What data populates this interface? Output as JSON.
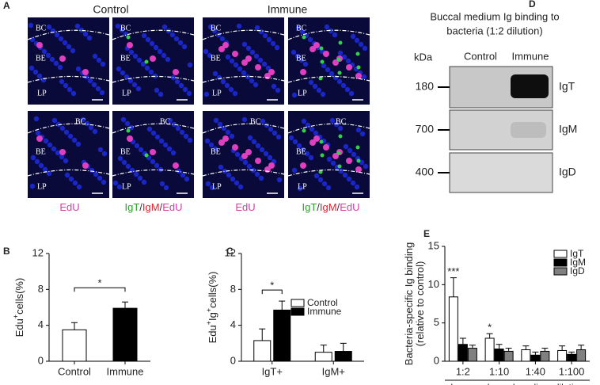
{
  "panel_letters": [
    "A",
    "B",
    "C",
    "D",
    "E"
  ],
  "panel_a": {
    "groups": [
      "Control",
      "Immune"
    ],
    "stain_labels": [
      [
        {
          "text": "EdU",
          "color": "#d63ba8"
        }
      ],
      [
        {
          "text": "IgT",
          "color": "#2ca02c"
        },
        {
          "text": "/",
          "color": "#333333"
        },
        {
          "text": "IgM",
          "color": "#e0202a"
        },
        {
          "text": "/",
          "color": "#333333"
        },
        {
          "text": "EdU",
          "color": "#d63ba8"
        }
      ],
      [
        {
          "text": "EdU",
          "color": "#d63ba8"
        }
      ],
      [
        {
          "text": "IgT",
          "color": "#2ca02c"
        },
        {
          "text": "/",
          "color": "#333333"
        },
        {
          "text": "IgM",
          "color": "#e0202a"
        },
        {
          "text": "/",
          "color": "#333333"
        },
        {
          "text": "EdU",
          "color": "#d63ba8"
        }
      ]
    ],
    "tissue_labels": [
      "BC",
      "BE",
      "LP"
    ]
  },
  "panel_d": {
    "title": [
      "Buccal medium Ig binding to",
      "bacteria  (1:2 dilution)"
    ],
    "unit": "kDa",
    "lanes": [
      "Control",
      "Immune"
    ],
    "markers": [
      "180",
      "700",
      "400"
    ],
    "blots": [
      "IgT",
      "IgM",
      "IgD"
    ]
  },
  "chart_data": [
    {
      "type": "bar",
      "ylabel": [
        {
          "text": "Edu"
        },
        {
          "text": "+",
          "sup": true
        },
        {
          "text": "cells(%)"
        }
      ],
      "categories": [
        "Control",
        "Immune"
      ],
      "values": [
        3.5,
        5.9
      ],
      "errors": [
        0.8,
        0.7
      ],
      "colors": [
        "#ffffff",
        "#000000"
      ],
      "ylim": [
        0,
        12
      ],
      "yticks": [
        0,
        4,
        8,
        12
      ],
      "annotations": [
        {
          "text": "*",
          "between": [
            0,
            1
          ]
        }
      ]
    },
    {
      "type": "grouped_bar",
      "ylabel": [
        {
          "text": "Edu"
        },
        {
          "text": "+",
          "sup": true
        },
        {
          "text": "Ig"
        },
        {
          "text": "+",
          "sup": true
        },
        {
          "text": "cells(%)"
        }
      ],
      "categories": [
        "IgT+",
        "IgM+"
      ],
      "series": [
        {
          "name": "Control",
          "color": "#ffffff",
          "values": [
            2.3,
            1.0
          ],
          "errors": [
            1.3,
            0.8
          ]
        },
        {
          "name": "Immune",
          "color": "#000000",
          "values": [
            5.7,
            1.1
          ],
          "errors": [
            1.0,
            0.9
          ]
        }
      ],
      "ylim": [
        0,
        12
      ],
      "yticks": [
        0,
        4,
        8,
        12
      ],
      "legend": "upper right",
      "annotations": [
        {
          "text": "*",
          "category": 0
        }
      ]
    },
    {
      "type": "grouped_bar",
      "ylabel": [
        {
          "text": "Bacteria-specific Ig binding"
        },
        {
          "text": "(relative to control)",
          "newline": true
        }
      ],
      "xlabel": "Immune buccal medium dilution",
      "categories": [
        "1:2",
        "1:10",
        "1:40",
        "1:100"
      ],
      "series": [
        {
          "name": "IgT",
          "color": "#ffffff",
          "values": [
            8.4,
            3.0,
            1.5,
            1.4
          ],
          "errors": [
            2.5,
            0.6,
            0.5,
            0.6
          ]
        },
        {
          "name": "IgM",
          "color": "#000000",
          "values": [
            2.2,
            1.6,
            0.8,
            0.9
          ],
          "errors": [
            0.8,
            0.6,
            0.4,
            0.3
          ]
        },
        {
          "name": "IgD",
          "color": "#808080",
          "values": [
            1.7,
            1.3,
            1.3,
            1.5
          ],
          "errors": [
            0.4,
            0.4,
            0.4,
            0.6
          ]
        }
      ],
      "ylim": [
        0,
        15
      ],
      "yticks": [
        0,
        5,
        10,
        15
      ],
      "legend": "upper right",
      "annotations": [
        {
          "text": "***",
          "category": 0,
          "series": 0
        },
        {
          "text": "*",
          "category": 1,
          "series": 0
        }
      ]
    }
  ]
}
